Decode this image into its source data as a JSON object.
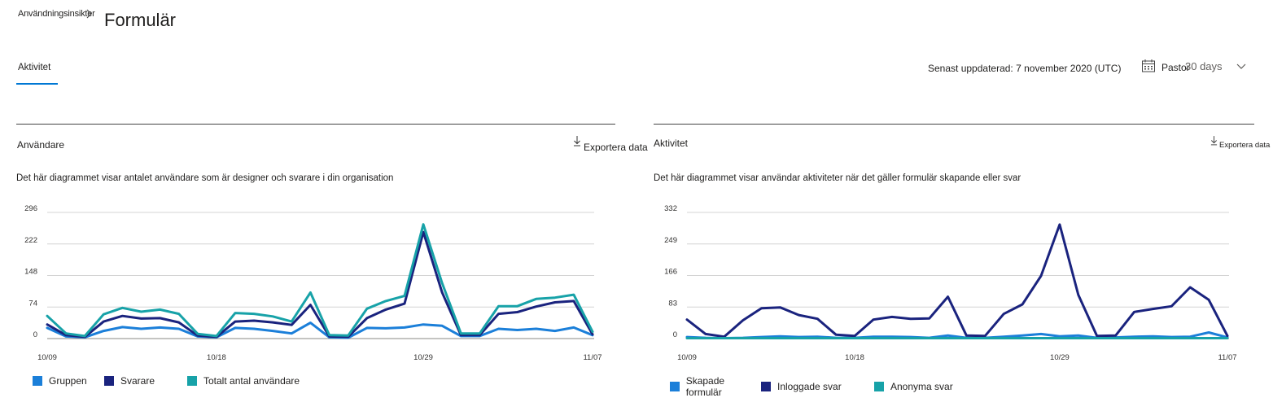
{
  "header": {
    "breadcrumb_parent": "Användningsinsikter",
    "title": "Formulär"
  },
  "tabs": [
    {
      "label": "Aktivitet"
    }
  ],
  "toolbar": {
    "last_updated": "Senast uppdaterad: 7 november 2020 (UTC)",
    "period_label": "Pastor",
    "period_value": "30 days",
    "calendar_icon": "calendar-icon",
    "chevron_icon": "chevron-down-icon"
  },
  "colors": {
    "gruppen": "#1b7fd9",
    "svarare": "#1a237e",
    "totalt": "#17a2a8",
    "accent": "#0078d4"
  },
  "cards": {
    "users": {
      "title": "Användare",
      "export_label": "Exportera data",
      "description": "Det här diagrammet visar antalet användare som är designer och svarare i din organisation"
    },
    "activity": {
      "title": "Aktivitet",
      "export_label": "Exportera data",
      "description": "Det här diagrammet visar användar aktiviteter när det gäller formulär skapande eller svar"
    }
  },
  "chart_data": [
    {
      "type": "line",
      "x": [
        "10/09",
        "10/10",
        "10/11",
        "10/12",
        "10/13",
        "10/14",
        "10/15",
        "10/16",
        "10/17",
        "10/18",
        "10/19",
        "10/20",
        "10/21",
        "10/22",
        "10/23",
        "10/24",
        "10/25",
        "10/26",
        "10/27",
        "10/28",
        "10/29",
        "10/30",
        "10/31",
        "11/01",
        "11/02",
        "11/03",
        "11/04",
        "11/05",
        "11/06",
        "11/07"
      ],
      "x_tick_labels": [
        "10/09",
        "10/18",
        "10/29",
        "11/07"
      ],
      "y_ticks": [
        0,
        74,
        148,
        222,
        296
      ],
      "ylim": [
        0,
        296
      ],
      "grid": true,
      "legend_position": "bottom-left",
      "series": [
        {
          "name": "Gruppen",
          "color": "#1b7fd9",
          "values": [
            25,
            5,
            3,
            18,
            27,
            23,
            26,
            23,
            5,
            3,
            25,
            23,
            18,
            12,
            37,
            3,
            2,
            25,
            24,
            26,
            33,
            30,
            6,
            6,
            23,
            20,
            23,
            18,
            26,
            8
          ]
        },
        {
          "name": "Svarare",
          "color": "#1a237e",
          "values": [
            33,
            8,
            4,
            40,
            53,
            47,
            48,
            38,
            7,
            4,
            40,
            42,
            38,
            32,
            79,
            5,
            4,
            48,
            68,
            82,
            250,
            108,
            8,
            8,
            58,
            62,
            75,
            85,
            88,
            10
          ]
        },
        {
          "name": "Totalt antal användare",
          "color": "#17a2a8",
          "values": [
            53,
            12,
            6,
            57,
            72,
            63,
            68,
            58,
            11,
            6,
            60,
            58,
            52,
            40,
            108,
            8,
            7,
            70,
            88,
            100,
            268,
            130,
            12,
            12,
            76,
            76,
            93,
            96,
            103,
            16
          ]
        }
      ]
    },
    {
      "type": "line",
      "x": [
        "10/09",
        "10/10",
        "10/11",
        "10/12",
        "10/13",
        "10/14",
        "10/15",
        "10/16",
        "10/17",
        "10/18",
        "10/19",
        "10/20",
        "10/21",
        "10/22",
        "10/23",
        "10/24",
        "10/25",
        "10/26",
        "10/27",
        "10/28",
        "10/29",
        "10/30",
        "10/31",
        "11/01",
        "11/02",
        "11/03",
        "11/04",
        "11/05",
        "11/06",
        "11/07"
      ],
      "x_tick_labels": [
        "10/09",
        "10/18",
        "10/29",
        "11/07"
      ],
      "y_ticks": [
        0,
        83,
        166,
        249,
        332
      ],
      "ylim": [
        0,
        332
      ],
      "grid": true,
      "legend_position": "bottom-left",
      "series": [
        {
          "name": "Skapade formulär",
          "color": "#1b7fd9",
          "values": [
            4,
            2,
            1,
            2,
            4,
            6,
            4,
            5,
            2,
            2,
            5,
            5,
            4,
            2,
            8,
            2,
            2,
            5,
            8,
            12,
            6,
            8,
            2,
            3,
            5,
            6,
            4,
            5,
            16,
            3
          ]
        },
        {
          "name": "Inloggade svar",
          "color": "#1a237e",
          "values": [
            50,
            12,
            5,
            48,
            80,
            82,
            62,
            52,
            10,
            7,
            50,
            57,
            52,
            53,
            110,
            8,
            7,
            65,
            90,
            165,
            300,
            115,
            7,
            8,
            70,
            78,
            85,
            135,
            102,
            7
          ]
        },
        {
          "name": "Anonyma svar",
          "color": "#17a2a8",
          "values": [
            1,
            1,
            1,
            1,
            1,
            1,
            1,
            1,
            1,
            1,
            1,
            1,
            1,
            1,
            1,
            1,
            1,
            1,
            1,
            1,
            1,
            1,
            1,
            1,
            1,
            1,
            1,
            1,
            1,
            1
          ]
        }
      ]
    }
  ]
}
